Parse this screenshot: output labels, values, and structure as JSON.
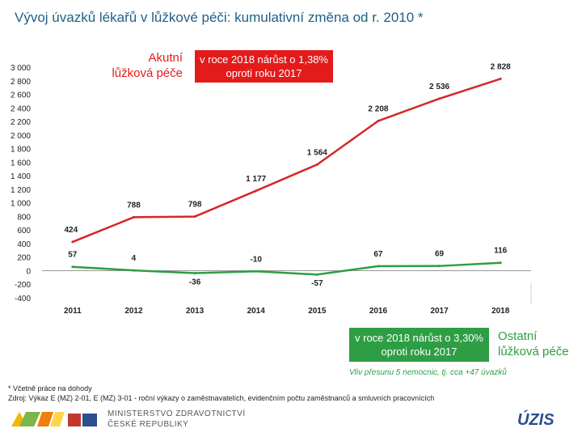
{
  "title": "Vývoj úvazků lékařů v lůžkové péči: kumulativní změna od r. 2010 *",
  "chart_data": {
    "type": "line",
    "categories": [
      "2011",
      "2012",
      "2013",
      "2014",
      "2015",
      "2016",
      "2017",
      "2018"
    ],
    "series": [
      {
        "name": "Akutní lůžková péče",
        "color": "#d62728",
        "values": [
          424,
          788,
          798,
          1177,
          1564,
          2208,
          2536,
          2828
        ],
        "labels": [
          "424",
          "788",
          "798",
          "1 177",
          "1 564",
          "2 208",
          "2 536",
          "2 828"
        ]
      },
      {
        "name": "Ostatní lůžková péče",
        "color": "#2e9e45",
        "values": [
          57,
          4,
          -36,
          -10,
          -57,
          67,
          69,
          116
        ],
        "labels": [
          "57",
          "4",
          "-36",
          "-10",
          "-57",
          "67",
          "69",
          "116"
        ]
      }
    ],
    "ylim": [
      -400,
      3000
    ],
    "yticks": [
      -400,
      -200,
      0,
      200,
      400,
      600,
      800,
      1000,
      1200,
      1400,
      1600,
      1800,
      2000,
      2200,
      2400,
      2600,
      2800,
      3000
    ],
    "ytick_labels": [
      "-400",
      "-200",
      "0",
      "200",
      "400",
      "600",
      "800",
      "1 000",
      "1 200",
      "1 400",
      "1 600",
      "1 800",
      "2 000",
      "2 200",
      "2 400",
      "2 600",
      "2 800",
      "3 000"
    ]
  },
  "annotations": {
    "acute_label_line1": "Akutní",
    "acute_label_line2": "lůžková péče",
    "acute_box_line1": "v roce 2018 nárůst o 1,38%",
    "acute_box_line2": "oproti roku 2017",
    "other_label_line1": "Ostatní",
    "other_label_line2": "lůžková péče",
    "other_box_line1": "v roce 2018 nárůst o 3,30%",
    "other_box_line2": "oproti roku 2017",
    "other_note": "Vliv přesunu 5 nemocnic, tj. cca +47 úvazků"
  },
  "footnote": {
    "line1": "* Včetně práce na dohody",
    "line2": "Zdroj: Výkaz E (MZ) 2-01, E (MZ) 3-01 - roční výkazy o zaměstnavatelích, evidenčním počtu zaměstnanců a smluvních pracovnících"
  },
  "branding": {
    "ministry_line1": "MINISTERSTVO ZDRAVOTNICTVÍ",
    "ministry_line2": "ČESKÉ REPUBLIKY",
    "uzis": "ÚZIS"
  },
  "colors": {
    "red": "#d62728",
    "green": "#2e9e45",
    "title": "#1f5f86"
  }
}
